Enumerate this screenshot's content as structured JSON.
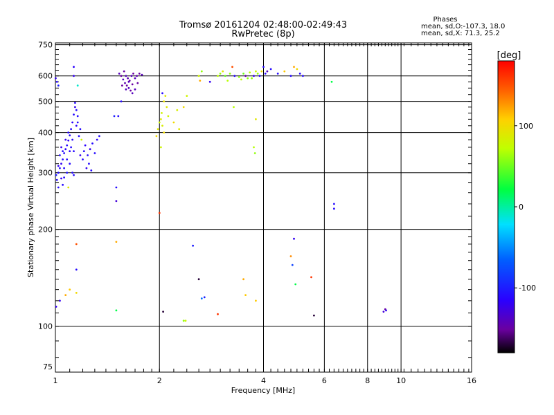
{
  "chart_data": {
    "type": "scatter",
    "title": "Tromsø 20161204 02:48:00-02:49:43",
    "subtitle": "RwPretec (8p)",
    "xlabel": "Frequency [MHz]",
    "ylabel": "Stationary phase Virtual Height [km]",
    "x_scale": "log",
    "y_scale": "log",
    "xlim": [
      1,
      16
    ],
    "ylim": [
      72,
      760
    ],
    "x_ticks": [
      1,
      2,
      4,
      6,
      8,
      10,
      16
    ],
    "y_ticks": [
      75,
      100,
      200,
      300,
      400,
      500,
      600,
      750
    ],
    "grid": true,
    "stats": {
      "header": "Phases",
      "line1": "mean, sd,O:-107.3, 18.0",
      "line2": "mean, sd,X:  71.3, 25.2"
    },
    "colorbar": {
      "label": "[deg]",
      "range": [
        -180,
        180
      ],
      "ticks": [
        100,
        0,
        -100
      ]
    },
    "points": [
      {
        "f": 1.002,
        "h": 590,
        "p": -120
      },
      {
        "f": 1.01,
        "h": 575,
        "p": -110
      },
      {
        "f": 1.02,
        "h": 560,
        "p": -100
      },
      {
        "f": 1.13,
        "h": 640,
        "p": -115
      },
      {
        "f": 1.16,
        "h": 560,
        "p": -10
      },
      {
        "f": 1.13,
        "h": 600,
        "p": -120
      },
      {
        "f": 1.02,
        "h": 300,
        "p": -110
      },
      {
        "f": 1.03,
        "h": 310,
        "p": -110
      },
      {
        "f": 1.04,
        "h": 320,
        "p": -120
      },
      {
        "f": 1.05,
        "h": 330,
        "p": -110
      },
      {
        "f": 1.06,
        "h": 345,
        "p": -110
      },
      {
        "f": 1.07,
        "h": 355,
        "p": -115
      },
      {
        "f": 1.08,
        "h": 365,
        "p": -110
      },
      {
        "f": 1.09,
        "h": 378,
        "p": -120
      },
      {
        "f": 1.1,
        "h": 392,
        "p": -110
      },
      {
        "f": 1.11,
        "h": 410,
        "p": -110
      },
      {
        "f": 1.12,
        "h": 430,
        "p": -115
      },
      {
        "f": 1.13,
        "h": 455,
        "p": -110
      },
      {
        "f": 1.14,
        "h": 480,
        "p": -120
      },
      {
        "f": 1.14,
        "h": 495,
        "p": -110
      },
      {
        "f": 1.01,
        "h": 285,
        "p": -110
      },
      {
        "f": 1.005,
        "h": 295,
        "p": -100
      },
      {
        "f": 1.02,
        "h": 270,
        "p": -110
      },
      {
        "f": 1.04,
        "h": 288,
        "p": -120
      },
      {
        "f": 1.06,
        "h": 290,
        "p": -110
      },
      {
        "f": 1.08,
        "h": 300,
        "p": -105
      },
      {
        "f": 1.1,
        "h": 320,
        "p": -110
      },
      {
        "f": 1.12,
        "h": 300,
        "p": -110
      },
      {
        "f": 1.13,
        "h": 295,
        "p": -110
      },
      {
        "f": 1.05,
        "h": 350,
        "p": -110
      },
      {
        "f": 1.07,
        "h": 380,
        "p": -120
      },
      {
        "f": 1.09,
        "h": 400,
        "p": -115
      },
      {
        "f": 1.11,
        "h": 360,
        "p": -110
      },
      {
        "f": 1.12,
        "h": 380,
        "p": -110
      },
      {
        "f": 1.15,
        "h": 420,
        "p": -115
      },
      {
        "f": 1.16,
        "h": 450,
        "p": -110
      },
      {
        "f": 1.17,
        "h": 390,
        "p": -110
      },
      {
        "f": 1.18,
        "h": 340,
        "p": -120
      },
      {
        "f": 1.2,
        "h": 330,
        "p": -110
      },
      {
        "f": 1.21,
        "h": 350,
        "p": -110
      },
      {
        "f": 1.22,
        "h": 365,
        "p": -115
      },
      {
        "f": 1.24,
        "h": 340,
        "p": -110
      },
      {
        "f": 1.25,
        "h": 320,
        "p": -110
      },
      {
        "f": 1.26,
        "h": 355,
        "p": -120
      },
      {
        "f": 1.28,
        "h": 370,
        "p": -110
      },
      {
        "f": 1.3,
        "h": 345,
        "p": -110
      },
      {
        "f": 1.32,
        "h": 380,
        "p": -115
      },
      {
        "f": 1.34,
        "h": 390,
        "p": -110
      },
      {
        "f": 1.27,
        "h": 305,
        "p": -110
      },
      {
        "f": 1.19,
        "h": 380,
        "p": 80
      },
      {
        "f": 1.23,
        "h": 310,
        "p": -120
      },
      {
        "f": 1.03,
        "h": 340,
        "p": -110
      },
      {
        "f": 1.04,
        "h": 360,
        "p": -120
      },
      {
        "f": 1.06,
        "h": 310,
        "p": -110
      },
      {
        "f": 1.08,
        "h": 330,
        "p": -110
      },
      {
        "f": 1.1,
        "h": 350,
        "p": -115
      },
      {
        "f": 1.15,
        "h": 470,
        "p": -110
      },
      {
        "f": 1.16,
        "h": 430,
        "p": -110
      },
      {
        "f": 1.09,
        "h": 270,
        "p": 90
      },
      {
        "f": 1.05,
        "h": 275,
        "p": -110
      },
      {
        "f": 1.02,
        "h": 315,
        "p": -120
      },
      {
        "f": 1.13,
        "h": 350,
        "p": -110
      },
      {
        "f": 1.18,
        "h": 410,
        "p": -110
      },
      {
        "f": 1.53,
        "h": 610,
        "p": -140
      },
      {
        "f": 1.55,
        "h": 600,
        "p": -150
      },
      {
        "f": 1.57,
        "h": 585,
        "p": -140
      },
      {
        "f": 1.59,
        "h": 570,
        "p": -145
      },
      {
        "f": 1.61,
        "h": 560,
        "p": -150
      },
      {
        "f": 1.63,
        "h": 550,
        "p": -140
      },
      {
        "f": 1.65,
        "h": 540,
        "p": -150
      },
      {
        "f": 1.67,
        "h": 530,
        "p": -140
      },
      {
        "f": 1.58,
        "h": 620,
        "p": -150
      },
      {
        "f": 1.6,
        "h": 600,
        "p": -140
      },
      {
        "f": 1.62,
        "h": 590,
        "p": -145
      },
      {
        "f": 1.64,
        "h": 580,
        "p": -150
      },
      {
        "f": 1.66,
        "h": 600,
        "p": -140
      },
      {
        "f": 1.68,
        "h": 610,
        "p": -150
      },
      {
        "f": 1.7,
        "h": 590,
        "p": -140
      },
      {
        "f": 1.72,
        "h": 600,
        "p": -145
      },
      {
        "f": 1.75,
        "h": 610,
        "p": -150
      },
      {
        "f": 1.78,
        "h": 605,
        "p": -140
      },
      {
        "f": 1.56,
        "h": 560,
        "p": -150
      },
      {
        "f": 1.6,
        "h": 545,
        "p": -140
      },
      {
        "f": 1.63,
        "h": 575,
        "p": -140
      },
      {
        "f": 1.67,
        "h": 565,
        "p": -150
      },
      {
        "f": 1.7,
        "h": 545,
        "p": -140
      },
      {
        "f": 1.73,
        "h": 570,
        "p": -150
      },
      {
        "f": 1.55,
        "h": 500,
        "p": -110
      },
      {
        "f": 1.52,
        "h": 450,
        "p": -110
      },
      {
        "f": 1.48,
        "h": 450,
        "p": -100
      },
      {
        "f": 1.5,
        "h": 270,
        "p": -110
      },
      {
        "f": 1.5,
        "h": 245,
        "p": -130
      },
      {
        "f": 1.96,
        "h": 390,
        "p": 100
      },
      {
        "f": 1.98,
        "h": 410,
        "p": 90
      },
      {
        "f": 2.0,
        "h": 430,
        "p": 80
      },
      {
        "f": 2.02,
        "h": 440,
        "p": 90
      },
      {
        "f": 2.04,
        "h": 420,
        "p": 85
      },
      {
        "f": 2.06,
        "h": 400,
        "p": 100
      },
      {
        "f": 2.03,
        "h": 460,
        "p": 80
      },
      {
        "f": 2.06,
        "h": 500,
        "p": 95
      },
      {
        "f": 2.1,
        "h": 480,
        "p": 90
      },
      {
        "f": 2.12,
        "h": 450,
        "p": 80
      },
      {
        "f": 2.2,
        "h": 430,
        "p": 100
      },
      {
        "f": 2.25,
        "h": 470,
        "p": 85
      },
      {
        "f": 2.28,
        "h": 410,
        "p": 90
      },
      {
        "f": 2.35,
        "h": 480,
        "p": 100
      },
      {
        "f": 2.4,
        "h": 520,
        "p": 80
      },
      {
        "f": 2.04,
        "h": 530,
        "p": -110
      },
      {
        "f": 2.08,
        "h": 520,
        "p": 90
      },
      {
        "f": 2.02,
        "h": 360,
        "p": 80
      },
      {
        "f": 2.6,
        "h": 600,
        "p": 80
      },
      {
        "f": 2.62,
        "h": 580,
        "p": 120
      },
      {
        "f": 2.65,
        "h": 620,
        "p": 60
      },
      {
        "f": 2.8,
        "h": 575,
        "p": -120
      },
      {
        "f": 2.95,
        "h": 600,
        "p": 70
      },
      {
        "f": 3.0,
        "h": 610,
        "p": 60
      },
      {
        "f": 3.05,
        "h": 620,
        "p": 90
      },
      {
        "f": 3.1,
        "h": 600,
        "p": 50
      },
      {
        "f": 3.15,
        "h": 580,
        "p": 70
      },
      {
        "f": 3.2,
        "h": 610,
        "p": 60
      },
      {
        "f": 3.25,
        "h": 640,
        "p": 150
      },
      {
        "f": 3.3,
        "h": 600,
        "p": -110
      },
      {
        "f": 3.4,
        "h": 595,
        "p": 60
      },
      {
        "f": 3.45,
        "h": 585,
        "p": 70
      },
      {
        "f": 3.5,
        "h": 610,
        "p": 50
      },
      {
        "f": 3.55,
        "h": 600,
        "p": -150
      },
      {
        "f": 3.6,
        "h": 590,
        "p": 60
      },
      {
        "f": 3.65,
        "h": 615,
        "p": 70
      },
      {
        "f": 3.7,
        "h": 590,
        "p": 60
      },
      {
        "f": 3.75,
        "h": 600,
        "p": -120
      },
      {
        "f": 3.8,
        "h": 620,
        "p": 80
      },
      {
        "f": 3.85,
        "h": 610,
        "p": 60
      },
      {
        "f": 3.9,
        "h": 600,
        "p": -110
      },
      {
        "f": 3.95,
        "h": 620,
        "p": 100
      },
      {
        "f": 4.0,
        "h": 640,
        "p": -110
      },
      {
        "f": 4.05,
        "h": 610,
        "p": -110
      },
      {
        "f": 4.1,
        "h": 620,
        "p": -140
      },
      {
        "f": 4.2,
        "h": 630,
        "p": -110
      },
      {
        "f": 4.4,
        "h": 610,
        "p": -110
      },
      {
        "f": 4.6,
        "h": 620,
        "p": 110
      },
      {
        "f": 4.8,
        "h": 600,
        "p": -110
      },
      {
        "f": 5.0,
        "h": 630,
        "p": 100
      },
      {
        "f": 5.1,
        "h": 610,
        "p": -110
      },
      {
        "f": 5.2,
        "h": 600,
        "p": -110
      },
      {
        "f": 4.9,
        "h": 640,
        "p": 120
      },
      {
        "f": 3.28,
        "h": 480,
        "p": 70
      },
      {
        "f": 3.8,
        "h": 440,
        "p": 90
      },
      {
        "f": 3.75,
        "h": 360,
        "p": 70
      },
      {
        "f": 3.78,
        "h": 345,
        "p": 60
      },
      {
        "f": 6.3,
        "h": 575,
        "p": 20
      },
      {
        "f": 6.4,
        "h": 240,
        "p": -110
      },
      {
        "f": 6.4,
        "h": 232,
        "p": -110
      },
      {
        "f": 1.15,
        "h": 180,
        "p": 150
      },
      {
        "f": 1.15,
        "h": 150,
        "p": -110
      },
      {
        "f": 1.1,
        "h": 130,
        "p": 110
      },
      {
        "f": 1.15,
        "h": 127,
        "p": 100
      },
      {
        "f": 1.07,
        "h": 125,
        "p": 120
      },
      {
        "f": 1.03,
        "h": 120,
        "p": -120
      },
      {
        "f": 1.005,
        "h": 115,
        "p": -120
      },
      {
        "f": 1.5,
        "h": 183,
        "p": 120
      },
      {
        "f": 1.5,
        "h": 112,
        "p": 20
      },
      {
        "f": 2.0,
        "h": 225,
        "p": 160
      },
      {
        "f": 2.05,
        "h": 111,
        "p": -170
      },
      {
        "f": 2.35,
        "h": 104,
        "p": 60
      },
      {
        "f": 2.38,
        "h": 104,
        "p": 80
      },
      {
        "f": 2.5,
        "h": 178,
        "p": -100
      },
      {
        "f": 2.6,
        "h": 140,
        "p": -170
      },
      {
        "f": 2.7,
        "h": 123,
        "p": -100
      },
      {
        "f": 2.65,
        "h": 122,
        "p": -60
      },
      {
        "f": 2.95,
        "h": 109,
        "p": 160
      },
      {
        "f": 3.5,
        "h": 140,
        "p": 120
      },
      {
        "f": 3.55,
        "h": 125,
        "p": 110
      },
      {
        "f": 3.8,
        "h": 120,
        "p": 110
      },
      {
        "f": 4.8,
        "h": 165,
        "p": 130
      },
      {
        "f": 4.85,
        "h": 155,
        "p": -80
      },
      {
        "f": 4.9,
        "h": 187,
        "p": -120
      },
      {
        "f": 4.95,
        "h": 135,
        "p": 20
      },
      {
        "f": 5.5,
        "h": 142,
        "p": 160
      },
      {
        "f": 5.6,
        "h": 108,
        "p": -170
      },
      {
        "f": 8.9,
        "h": 111,
        "p": -130
      },
      {
        "f": 9.0,
        "h": 113,
        "p": -150
      },
      {
        "f": 9.05,
        "h": 112,
        "p": -120
      }
    ]
  }
}
